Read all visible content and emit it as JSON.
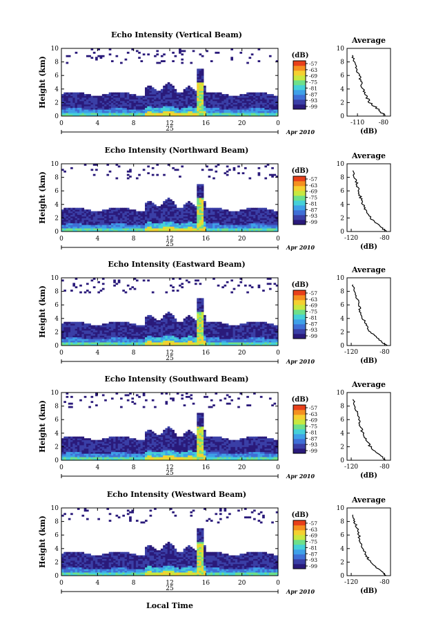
{
  "figure": {
    "date_label": "Apr 2010",
    "xlabel_bottom": "Local Time",
    "day_label": "25",
    "colorbar_unit": "(dB)",
    "colorbar_ticks": [
      "-57",
      "-63",
      "-69",
      "-75",
      "-81",
      "-87",
      "-93",
      "-99"
    ],
    "colormap": [
      "#2a1a7a",
      "#3a3fa6",
      "#3f6fd6",
      "#3fa0e8",
      "#45d0d8",
      "#6ee08a",
      "#c8e840",
      "#f5d030",
      "#f59020",
      "#e8401a"
    ]
  },
  "chart_data": [
    {
      "type": "heatmap",
      "title": "Echo Intensity (Vertical Beam)",
      "ylabel": "Height (km)",
      "xticks": [
        "0",
        "4",
        "8",
        "12",
        "16",
        "20",
        "0"
      ],
      "yticks": [
        "0",
        "2",
        "4",
        "6",
        "8",
        "10"
      ],
      "x_range": [
        0,
        24
      ],
      "y_range": [
        0,
        10
      ],
      "colorbar_range_db": [
        -99,
        -57
      ],
      "profile": {
        "title": "Average",
        "xlabel": "(dB)",
        "xticks": [
          "-110",
          "-80"
        ],
        "x_range": [
          -122,
          -72
        ],
        "yticks": [
          "0",
          "2",
          "4",
          "6",
          "8",
          "10"
        ],
        "height_km": [
          0,
          1,
          2,
          3,
          4,
          5,
          6,
          7,
          8,
          9
        ],
        "avg_db": [
          -78,
          -86,
          -96,
          -100,
          -104,
          -106,
          -108,
          -111,
          -114,
          -116
        ]
      }
    },
    {
      "type": "heatmap",
      "title": "Echo Intensity (Northward Beam)",
      "ylabel": "Height (km)",
      "xticks": [
        "0",
        "4",
        "8",
        "12",
        "16",
        "20",
        "0"
      ],
      "yticks": [
        "0",
        "2",
        "4",
        "6",
        "8",
        "10"
      ],
      "x_range": [
        0,
        24
      ],
      "y_range": [
        0,
        10
      ],
      "colorbar_range_db": [
        -99,
        -57
      ],
      "profile": {
        "title": "Average",
        "xlabel": "(dB)",
        "xticks": [
          "-120",
          "-80"
        ],
        "x_range": [
          -125,
          -73
        ],
        "yticks": [
          "0",
          "2",
          "4",
          "6",
          "8",
          "10"
        ],
        "height_km": [
          0,
          1,
          2,
          3,
          4,
          5,
          6,
          7,
          8,
          9
        ],
        "avg_db": [
          -78,
          -88,
          -97,
          -102,
          -106,
          -109,
          -111,
          -113,
          -116,
          -118
        ]
      }
    },
    {
      "type": "heatmap",
      "title": "Echo Intensity (Eastward Beam)",
      "ylabel": "Height (km)",
      "xticks": [
        "0",
        "4",
        "8",
        "12",
        "16",
        "20",
        "0"
      ],
      "yticks": [
        "0",
        "2",
        "4",
        "6",
        "8",
        "10"
      ],
      "x_range": [
        0,
        24
      ],
      "y_range": [
        0,
        10
      ],
      "colorbar_range_db": [
        -99,
        -57
      ],
      "profile": {
        "title": "Average",
        "xlabel": "(dB)",
        "xticks": [
          "-120",
          "-80"
        ],
        "x_range": [
          -125,
          -73
        ],
        "yticks": [
          "0",
          "2",
          "4",
          "6",
          "8",
          "10"
        ],
        "height_km": [
          0,
          1,
          2,
          3,
          4,
          5,
          6,
          7,
          8,
          9
        ],
        "avg_db": [
          -78,
          -88,
          -97,
          -102,
          -106,
          -109,
          -111,
          -113,
          -116,
          -118
        ]
      }
    },
    {
      "type": "heatmap",
      "title": "Echo Intensity (Southward Beam)",
      "ylabel": "Height (km)",
      "xticks": [
        "0",
        "4",
        "8",
        "12",
        "16",
        "20",
        "0"
      ],
      "yticks": [
        "0",
        "2",
        "4",
        "6",
        "8",
        "10"
      ],
      "x_range": [
        0,
        24
      ],
      "y_range": [
        0,
        10
      ],
      "colorbar_range_db": [
        -99,
        -57
      ],
      "profile": {
        "title": "Average",
        "xlabel": "(dB)",
        "xticks": [
          "-120",
          "-80"
        ],
        "x_range": [
          -125,
          -73
        ],
        "yticks": [
          "0",
          "2",
          "4",
          "6",
          "8",
          "10"
        ],
        "height_km": [
          0,
          1,
          2,
          3,
          4,
          5,
          6,
          7,
          8,
          9
        ],
        "avg_db": [
          -78,
          -88,
          -97,
          -102,
          -106,
          -109,
          -111,
          -113,
          -116,
          -118
        ]
      }
    },
    {
      "type": "heatmap",
      "title": "Echo Intensity (Westward Beam)",
      "ylabel": "Height (km)",
      "xticks": [
        "0",
        "4",
        "8",
        "12",
        "16",
        "20",
        "0"
      ],
      "yticks": [
        "0",
        "2",
        "4",
        "6",
        "8",
        "10"
      ],
      "x_range": [
        0,
        24
      ],
      "y_range": [
        0,
        10
      ],
      "colorbar_range_db": [
        -99,
        -57
      ],
      "profile": {
        "title": "Average",
        "xlabel": "(dB)",
        "xticks": [
          "-120",
          "-80"
        ],
        "x_range": [
          -125,
          -73
        ],
        "yticks": [
          "0",
          "2",
          "4",
          "6",
          "8",
          "10"
        ],
        "height_km": [
          0,
          1,
          2,
          3,
          4,
          5,
          6,
          7,
          8,
          9
        ],
        "avg_db": [
          -78,
          -88,
          -97,
          -102,
          -106,
          -109,
          -111,
          -113,
          -116,
          -118
        ]
      }
    }
  ]
}
